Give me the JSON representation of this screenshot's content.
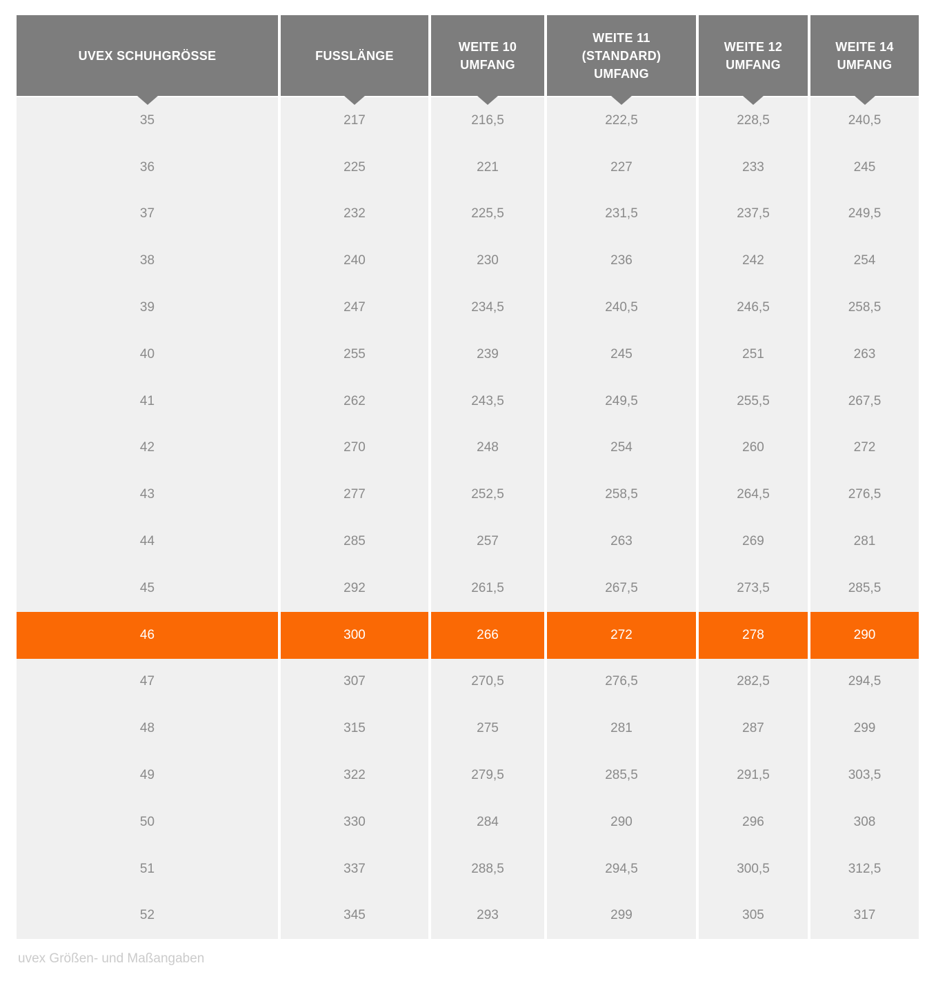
{
  "colors": {
    "page_bg": "#ffffff",
    "header_bg": "#7d7d7d",
    "header_text": "#ffffff",
    "row_bg": "#f0f0f0",
    "row_text": "#8a8a8a",
    "highlight_bg": "#fa6905",
    "highlight_text": "#ffffff",
    "caption_text": "#cbcbcb"
  },
  "table": {
    "columns": [
      "UVEX SCHUHGRÖSSE",
      "FUSSLÄNGE",
      "WEITE 10\nUMFANG",
      "WEITE 11\n(STANDARD)\nUMFANG",
      "WEITE 12\nUMFANG",
      "WEITE 14\nUMFANG"
    ],
    "rows": [
      [
        "35",
        "217",
        "216,5",
        "222,5",
        "228,5",
        "240,5"
      ],
      [
        "36",
        "225",
        "221",
        "227",
        "233",
        "245"
      ],
      [
        "37",
        "232",
        "225,5",
        "231,5",
        "237,5",
        "249,5"
      ],
      [
        "38",
        "240",
        "230",
        "236",
        "242",
        "254"
      ],
      [
        "39",
        "247",
        "234,5",
        "240,5",
        "246,5",
        "258,5"
      ],
      [
        "40",
        "255",
        "239",
        "245",
        "251",
        "263"
      ],
      [
        "41",
        "262",
        "243,5",
        "249,5",
        "255,5",
        "267,5"
      ],
      [
        "42",
        "270",
        "248",
        "254",
        "260",
        "272"
      ],
      [
        "43",
        "277",
        "252,5",
        "258,5",
        "264,5",
        "276,5"
      ],
      [
        "44",
        "285",
        "257",
        "263",
        "269",
        "281"
      ],
      [
        "45",
        "292",
        "261,5",
        "267,5",
        "273,5",
        "285,5"
      ],
      [
        "46",
        "300",
        "266",
        "272",
        "278",
        "290"
      ],
      [
        "47",
        "307",
        "270,5",
        "276,5",
        "282,5",
        "294,5"
      ],
      [
        "48",
        "315",
        "275",
        "281",
        "287",
        "299"
      ],
      [
        "49",
        "322",
        "279,5",
        "285,5",
        "291,5",
        "303,5"
      ],
      [
        "50",
        "330",
        "284",
        "290",
        "296",
        "308"
      ],
      [
        "51",
        "337",
        "288,5",
        "294,5",
        "300,5",
        "312,5"
      ],
      [
        "52",
        "345",
        "293",
        "299",
        "305",
        "317"
      ]
    ],
    "highlighted_row_index": 11,
    "highlighted_size": "46"
  },
  "caption": "uvex Größen- und Maßangaben"
}
